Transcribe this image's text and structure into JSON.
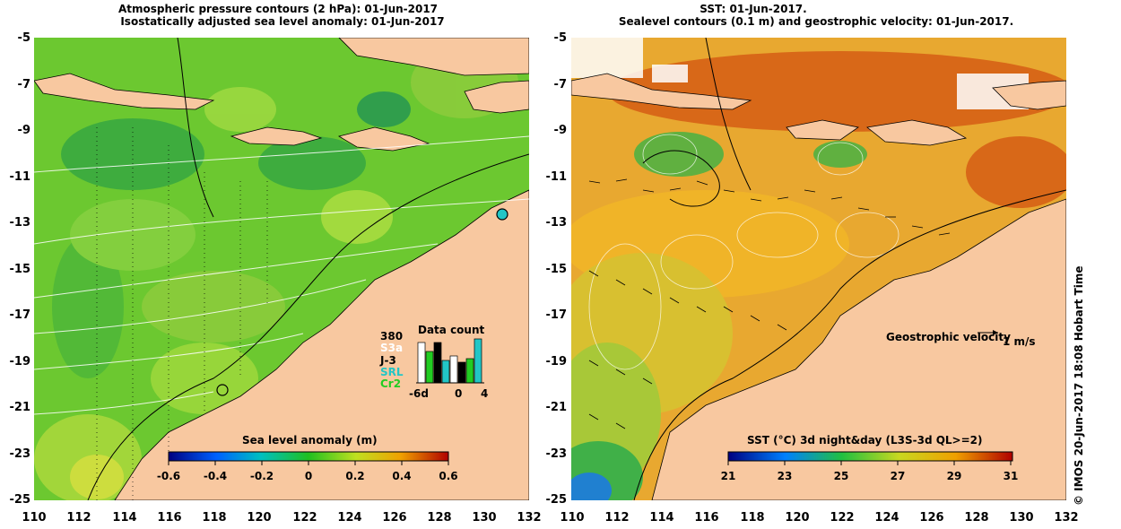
{
  "left_panel": {
    "title_line1": "Atmospheric pressure contours (2 hPa): 01-Jun-2017",
    "title_line2": "Isostatically adjusted sea level anomaly: 01-Jun-2017",
    "colorbar": {
      "label": "Sea level anomaly (m)",
      "ticks": [
        "-0.6",
        "-0.4",
        "-0.2",
        "0",
        "0.2",
        "0.4",
        "0.6"
      ]
    },
    "data_count": {
      "title": "Data count",
      "max": "380",
      "missions": [
        {
          "name": "S3a",
          "color": "#ffffff"
        },
        {
          "name": "J-3",
          "color": "#000000"
        },
        {
          "name": "SRL",
          "color": "#22c6c6"
        },
        {
          "name": "Cr2",
          "color": "#22cc22"
        }
      ],
      "x_left": "-6d",
      "x_mid": "0",
      "x_right": "4"
    }
  },
  "right_panel": {
    "title_line1": "SST: 01-Jun-2017.",
    "title_line2": "Sealevel contours (0.1 m) and geostrophic velocity: 01-Jun-2017.",
    "colorbar": {
      "label": "SST (°C) 3d night&day (L3S-3d QL>=2)",
      "ticks": [
        "21",
        "23",
        "25",
        "27",
        "29",
        "31"
      ]
    },
    "velocity_legend": {
      "label": "Geostrophic velocity",
      "unit": "1 m/s"
    }
  },
  "axes": {
    "y_ticks": [
      "-5",
      "-7",
      "-9",
      "-11",
      "-13",
      "-15",
      "-17",
      "-19",
      "-21",
      "-23",
      "-25"
    ],
    "x_ticks": [
      "110",
      "112",
      "114",
      "116",
      "118",
      "120",
      "122",
      "124",
      "126",
      "128",
      "130",
      "132"
    ]
  },
  "timestamp": "© IMOS 20-Jun-2017 18:08 Hobart Time",
  "colors": {
    "land": "#f8c8a0",
    "ocean_sla": "#6ccc2c",
    "ocean_sst": "#f0a020"
  }
}
